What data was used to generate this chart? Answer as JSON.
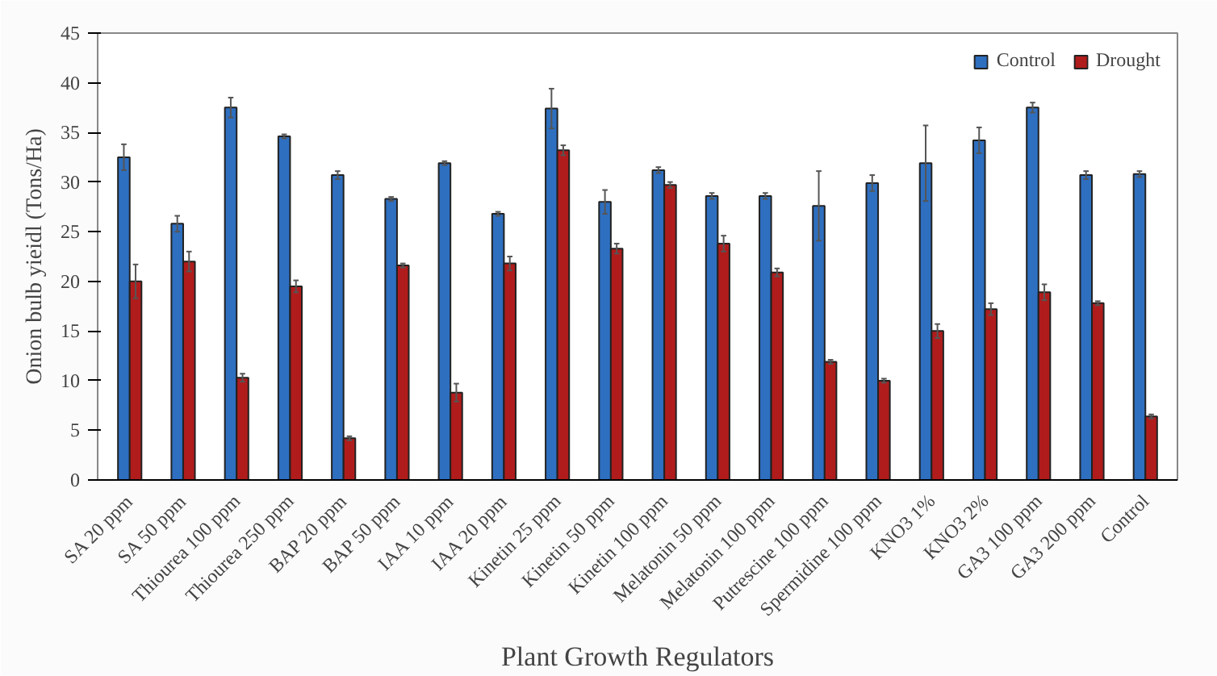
{
  "chart_data": {
    "type": "bar",
    "xlabel": "Plant Growth Regulators",
    "ylabel": "Onion bulb yieidl (Tons/Ha)",
    "categories": [
      "SA 20 ppm",
      "SA 50 ppm",
      "Thiourea 100 ppm",
      "Thiourea 250 ppm",
      "BAP 20 ppm",
      "BAP 50 ppm",
      "IAA 10 ppm",
      "IAA 20 ppm",
      "Kinetin 25 ppm",
      "Kinetin 50 ppm",
      "Kinetin 100 ppm",
      "Melatonin 50 ppm",
      "Melatonin 100 ppm",
      "Putrescine 100 ppm",
      "Spermidine 100 ppm",
      "KNO3 1%",
      "KNO3 2%",
      "GA3 100 ppm",
      "GA3 200 ppm",
      "Control"
    ],
    "series": [
      {
        "name": "Control",
        "color": "#2e6fc0",
        "values": [
          32.5,
          25.8,
          37.5,
          34.6,
          30.7,
          28.3,
          31.9,
          26.8,
          37.4,
          28.0,
          31.2,
          28.6,
          28.6,
          27.6,
          29.9,
          31.9,
          34.2,
          37.5,
          30.7,
          30.8
        ],
        "errors": [
          1.3,
          0.8,
          1.0,
          0.2,
          0.4,
          0.2,
          0.2,
          0.2,
          2.0,
          1.2,
          0.3,
          0.3,
          0.3,
          3.5,
          0.8,
          3.8,
          1.3,
          0.5,
          0.4,
          0.3
        ]
      },
      {
        "name": "Drought",
        "color": "#b01c1c",
        "values": [
          20.0,
          22.0,
          10.3,
          19.5,
          4.2,
          21.6,
          8.8,
          21.8,
          33.2,
          23.3,
          29.7,
          23.8,
          20.9,
          11.9,
          10.0,
          15.0,
          17.2,
          18.9,
          17.8,
          6.4
        ],
        "errors": [
          1.7,
          1.0,
          0.4,
          0.6,
          0.2,
          0.2,
          0.9,
          0.7,
          0.5,
          0.5,
          0.3,
          0.8,
          0.4,
          0.2,
          0.2,
          0.7,
          0.6,
          0.8,
          0.2,
          0.2
        ]
      }
    ],
    "ylim": [
      0,
      45
    ],
    "yticks": [
      0,
      5,
      10,
      15,
      20,
      25,
      30,
      35,
      40,
      45
    ],
    "grid": false,
    "legend": "top right"
  }
}
